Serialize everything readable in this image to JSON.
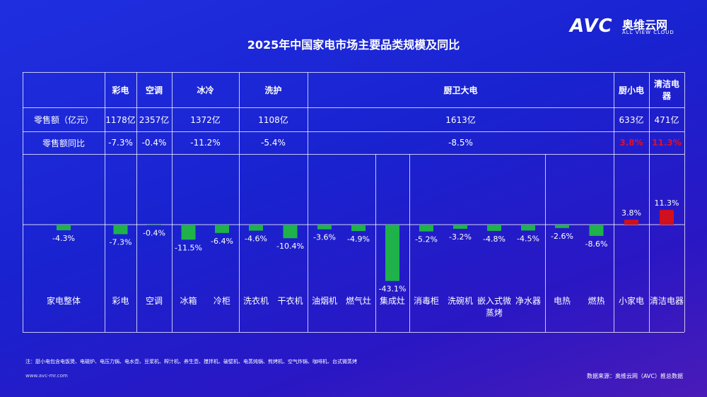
{
  "logo": {
    "mark": "AVC",
    "name": "奥维云网",
    "tagline": "ALL VIEW CLOUD"
  },
  "table": {
    "header": [
      "彩电",
      "空调",
      "冰冷",
      "洗护",
      "厨卫大电",
      "厨小电",
      "清洁电器"
    ],
    "rows": [
      [
        "零售额（亿元）",
        "1178亿",
        "2357亿",
        "1372亿",
        "1108亿",
        "1613亿",
        "633亿",
        "471亿"
      ],
      [
        "零售额同比",
        "-7.3%",
        "-0.4%",
        "-11.2%",
        "-5.4%",
        "-8.5%",
        "3.8%",
        "11.3%"
      ]
    ],
    "highlight_color": "#e0102a"
  },
  "chart_data": {
    "type": "bar",
    "title": "2025年中国家电市场主要品类规模及同比",
    "categories": [
      "家电整体",
      "彩电",
      "空调",
      "冰箱",
      "冷柜",
      "洗衣机",
      "干衣机",
      "油烟机",
      "燃气灶",
      "集成灶",
      "消毒柜",
      "洗碗机",
      "嵌入式微蒸烤",
      "净水器",
      "电热",
      "燃热",
      "小家电",
      "清洁电器"
    ],
    "values": [
      -4.3,
      -7.3,
      -0.4,
      -11.5,
      -6.4,
      -4.6,
      -10.4,
      -3.6,
      -4.9,
      -43.1,
      -5.2,
      -3.2,
      -4.8,
      -4.5,
      -2.6,
      -8.6,
      3.8,
      11.3
    ],
    "value_labels": [
      "-4.3%",
      "-7.3%",
      "-0.4%",
      "-11.5%",
      "-6.4%",
      "-4.6%",
      "-10.4%",
      "-3.6%",
      "-4.9%",
      "-43.1%",
      "-5.2%",
      "-3.2%",
      "-4.8%",
      "-4.5%",
      "-2.6%",
      "-8.6%",
      "3.8%",
      "11.3%"
    ],
    "colors": {
      "negative": "#1fb24a",
      "positive": "#d0101c"
    }
  },
  "footer": {
    "note": "注：厨小电包含电饭煲、电磁炉、电压力锅、电水壶、豆浆机、榨汁机、养生壶、搅拌机、破壁机、电蒸炖锅、煎烤机、空气炸锅、咖啡机、台式微蒸烤",
    "url": "www.avc-mr.com",
    "source": "数据来源：奥维云网（AVC）推总数据"
  }
}
